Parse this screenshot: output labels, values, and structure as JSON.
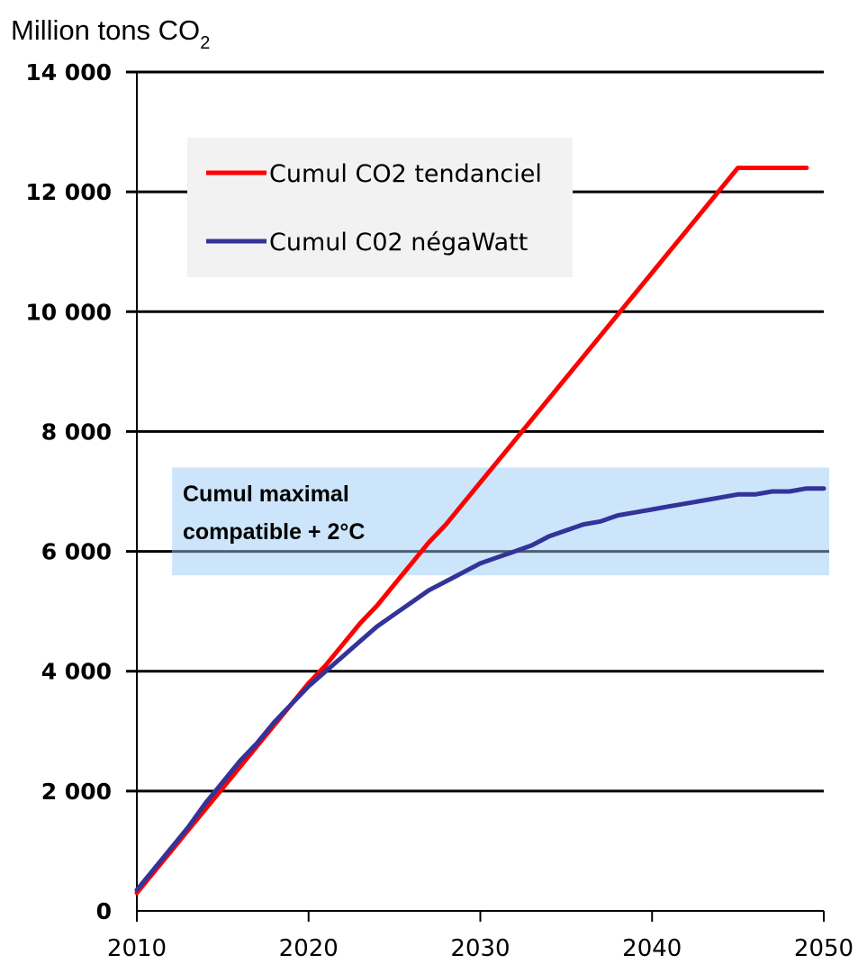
{
  "chart_data": {
    "type": "line",
    "title": "",
    "ylabel_main": "Million tons CO",
    "ylabel_sub": "2",
    "xlabel": "",
    "xlim": [
      2010,
      2050
    ],
    "ylim": [
      0,
      14000
    ],
    "x_ticks": [
      2010,
      2020,
      2030,
      2040,
      2050
    ],
    "x_tick_labels": [
      "2010",
      "2020",
      "2030",
      "2040",
      "2050"
    ],
    "y_ticks": [
      0,
      2000,
      4000,
      6000,
      8000,
      10000,
      12000,
      14000
    ],
    "y_tick_labels": [
      "0",
      "2 000",
      "4 000",
      "6 000",
      "8 000",
      "10 000",
      "12 000",
      "14 000"
    ],
    "grid": true,
    "legend_position": "upper-left",
    "series": [
      {
        "name": "Cumul CO2 tendanciel",
        "color": "#ff0000",
        "x": [
          2010,
          2011,
          2012,
          2013,
          2014,
          2015,
          2016,
          2017,
          2018,
          2019,
          2020,
          2021,
          2022,
          2023,
          2024,
          2025,
          2026,
          2027,
          2028,
          2029,
          2030,
          2031,
          2032,
          2033,
          2034,
          2035,
          2036,
          2037,
          2038,
          2039,
          2040,
          2041,
          2042,
          2043,
          2044,
          2045,
          2046,
          2047,
          2048,
          2049
        ],
        "values": [
          300,
          650,
          1000,
          1350,
          1700,
          2050,
          2400,
          2750,
          3100,
          3450,
          3800,
          4100,
          4450,
          4800,
          5100,
          5450,
          5800,
          6150,
          6450,
          6800,
          7150,
          7500,
          7850,
          8200,
          8550,
          8900,
          9250,
          9600,
          9950,
          10300,
          10650,
          11000,
          11350,
          11700,
          12050,
          12400,
          12400,
          12400,
          12400,
          12400
        ]
      },
      {
        "name": "Cumul C02 négaWatt",
        "color": "#333399",
        "x": [
          2010,
          2011,
          2012,
          2013,
          2014,
          2015,
          2016,
          2017,
          2018,
          2019,
          2020,
          2021,
          2022,
          2023,
          2024,
          2025,
          2026,
          2027,
          2028,
          2029,
          2030,
          2031,
          2032,
          2033,
          2034,
          2035,
          2036,
          2037,
          2038,
          2039,
          2040,
          2041,
          2042,
          2043,
          2044,
          2045,
          2046,
          2047,
          2048,
          2049,
          2050
        ],
        "values": [
          350,
          700,
          1050,
          1400,
          1800,
          2150,
          2500,
          2800,
          3150,
          3450,
          3750,
          4000,
          4250,
          4500,
          4750,
          4950,
          5150,
          5350,
          5500,
          5650,
          5800,
          5900,
          6000,
          6100,
          6250,
          6350,
          6450,
          6500,
          6600,
          6650,
          6700,
          6750,
          6800,
          6850,
          6900,
          6950,
          6950,
          7000,
          7000,
          7050,
          7050
        ]
      }
    ],
    "band": {
      "label_line1": "Cumul maximal",
      "label_line2": "compatible + 2°C",
      "y_range": [
        5600,
        7400
      ],
      "x_start": 2012,
      "reference_value": 6000,
      "color": "#cce5fa"
    },
    "legend_box_color": "#f2f2f2",
    "line_color": "#000000"
  }
}
